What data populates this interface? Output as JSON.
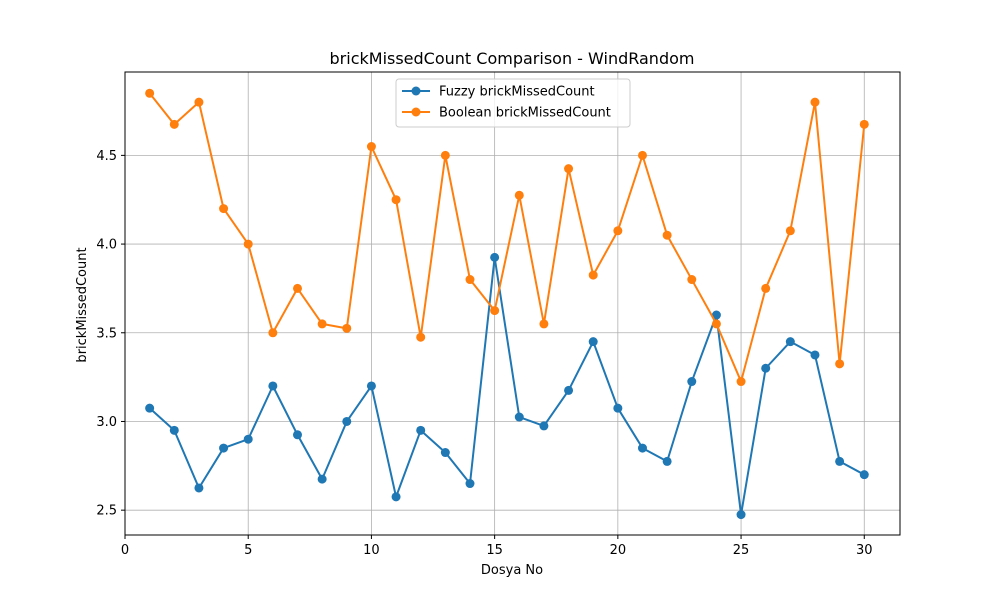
{
  "chart_data": {
    "type": "line",
    "title": "brickMissedCount Comparison - WindRandom",
    "xlabel": "Dosya No",
    "ylabel": "brickMissedCount",
    "xlim": [
      0,
      31.45
    ],
    "ylim": [
      2.36,
      4.97
    ],
    "x_ticks": [
      0,
      5,
      10,
      15,
      20,
      25,
      30
    ],
    "y_ticks": [
      2.5,
      3.0,
      3.5,
      4.0,
      4.5
    ],
    "y_tick_labels": [
      "2.5",
      "3.0",
      "3.5",
      "4.0",
      "4.5"
    ],
    "grid": true,
    "legend_position": "top-center",
    "x": [
      1,
      2,
      3,
      4,
      5,
      6,
      7,
      8,
      9,
      10,
      11,
      12,
      13,
      14,
      15,
      16,
      17,
      18,
      19,
      20,
      21,
      22,
      23,
      24,
      25,
      26,
      27,
      28,
      29,
      30
    ],
    "series": [
      {
        "name": "Fuzzy brickMissedCount",
        "color": "#1f77b4",
        "values": [
          3.075,
          2.95,
          2.625,
          2.85,
          2.9,
          3.2,
          2.925,
          2.675,
          3.0,
          3.2,
          2.575,
          2.95,
          2.825,
          2.65,
          3.925,
          3.025,
          2.975,
          3.175,
          3.45,
          3.075,
          2.85,
          2.775,
          3.225,
          3.6,
          2.475,
          3.3,
          3.45,
          3.375,
          2.775,
          2.7
        ]
      },
      {
        "name": "Boolean brickMissedCount",
        "color": "#ff7f0e",
        "values": [
          4.85,
          4.675,
          4.8,
          4.2,
          4.0,
          3.5,
          3.75,
          3.55,
          3.525,
          4.55,
          4.25,
          3.475,
          4.5,
          3.8,
          3.625,
          4.275,
          3.55,
          4.425,
          3.825,
          4.075,
          4.5,
          4.05,
          3.8,
          3.55,
          3.225,
          3.75,
          4.075,
          4.8,
          3.325,
          4.675
        ]
      }
    ]
  }
}
